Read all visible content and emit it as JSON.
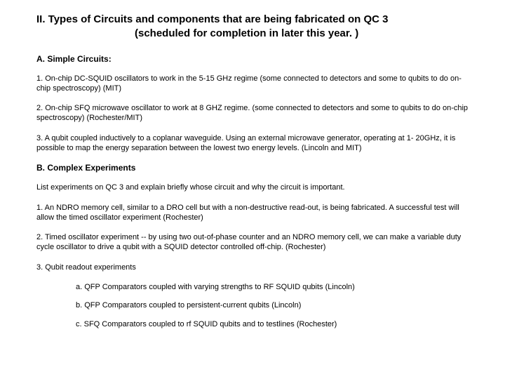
{
  "title_line1": "II. Types of Circuits and components that are being fabricated on QC 3",
  "title_line2": "(scheduled for  completion in later this year. )",
  "sectionA": "A. Simple Circuits:",
  "a1": "1. On-chip DC-SQUID oscillators to work in the 5-15 GHz regime (some connected to detectors and some to qubits to do on-chip spectroscopy) (MIT)",
  "a2": "2. On-chip SFQ microwave oscillator to work at 8 GHZ regime.  (some connected to detectors and some to qubits to do on-chip spectroscopy) (Rochester/MIT)",
  "a3": "3. A qubit coupled inductively to a coplanar waveguide. Using an external microwave generator, operating at 1- 20GHz, it is possible to map the energy separation between the lowest two energy levels. (Lincoln and MIT)",
  "sectionB": "B. Complex Experiments",
  "b_intro": "List  experiments on QC 3 and explain briefly whose circuit and why the circuit is important.",
  "b1": "1.  An NDRO memory cell, similar to a DRO cell but with a non-destructive read-out, is being fabricated.  A successful test will allow the timed oscillator experiment (Rochester)",
  "b2": "2.  Timed oscillator experiment -- by using two out-of-phase counter and an NDRO memory cell, we can make a variable duty cycle oscillator to drive a qubit with a SQUID detector controlled off-chip. (Rochester)",
  "b3": "3. Qubit readout experiments",
  "b3a": "a. QFP Comparators coupled with varying strengths to RF SQUID qubits (Lincoln)",
  "b3b": "b. QFP Comparators coupled to persistent-current qubits (Lincoln)",
  "b3c": "c. SFQ Comparators coupled to rf SQUID qubits and to testlines (Rochester)"
}
